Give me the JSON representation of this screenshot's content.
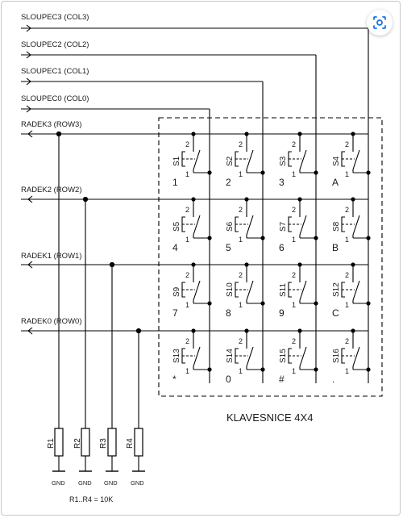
{
  "columns": [
    {
      "label": "SLOUPEC3 (COL3)"
    },
    {
      "label": "SLOUPEC2 (COL2)"
    },
    {
      "label": "SLOUPEC1 (COL1)"
    },
    {
      "label": "SLOUPEC0 (COL0)"
    }
  ],
  "rows": [
    {
      "label": "RADEK3 (ROW3)"
    },
    {
      "label": "RADEK2 (ROW2)"
    },
    {
      "label": "RADEK1 (ROW1)"
    },
    {
      "label": "RADEK0 (ROW0)"
    }
  ],
  "switches": [
    {
      "ref": "S1",
      "key": "1"
    },
    {
      "ref": "S2",
      "key": "2"
    },
    {
      "ref": "S3",
      "key": "3"
    },
    {
      "ref": "S4",
      "key": "A"
    },
    {
      "ref": "S5",
      "key": "4"
    },
    {
      "ref": "S6",
      "key": "5"
    },
    {
      "ref": "S7",
      "key": "6"
    },
    {
      "ref": "S8",
      "key": "B"
    },
    {
      "ref": "S9",
      "key": "7"
    },
    {
      "ref": "S10",
      "key": "8"
    },
    {
      "ref": "S11",
      "key": "9"
    },
    {
      "ref": "S12",
      "key": "C"
    },
    {
      "ref": "S13",
      "key": "*"
    },
    {
      "ref": "S14",
      "key": "0"
    },
    {
      "ref": "S15",
      "key": "#"
    },
    {
      "ref": "S16",
      "key": "."
    }
  ],
  "pins": {
    "top": "2",
    "bottom": "1"
  },
  "resistors": [
    {
      "ref": "R1",
      "ground": "GND"
    },
    {
      "ref": "R2",
      "ground": "GND"
    },
    {
      "ref": "R3",
      "ground": "GND"
    },
    {
      "ref": "R4",
      "ground": "GND"
    }
  ],
  "keypad_title": "KLAVESNICE 4X4",
  "resistor_note": "R1..R4 = 10K",
  "lens_icon": "lens-search-icon"
}
